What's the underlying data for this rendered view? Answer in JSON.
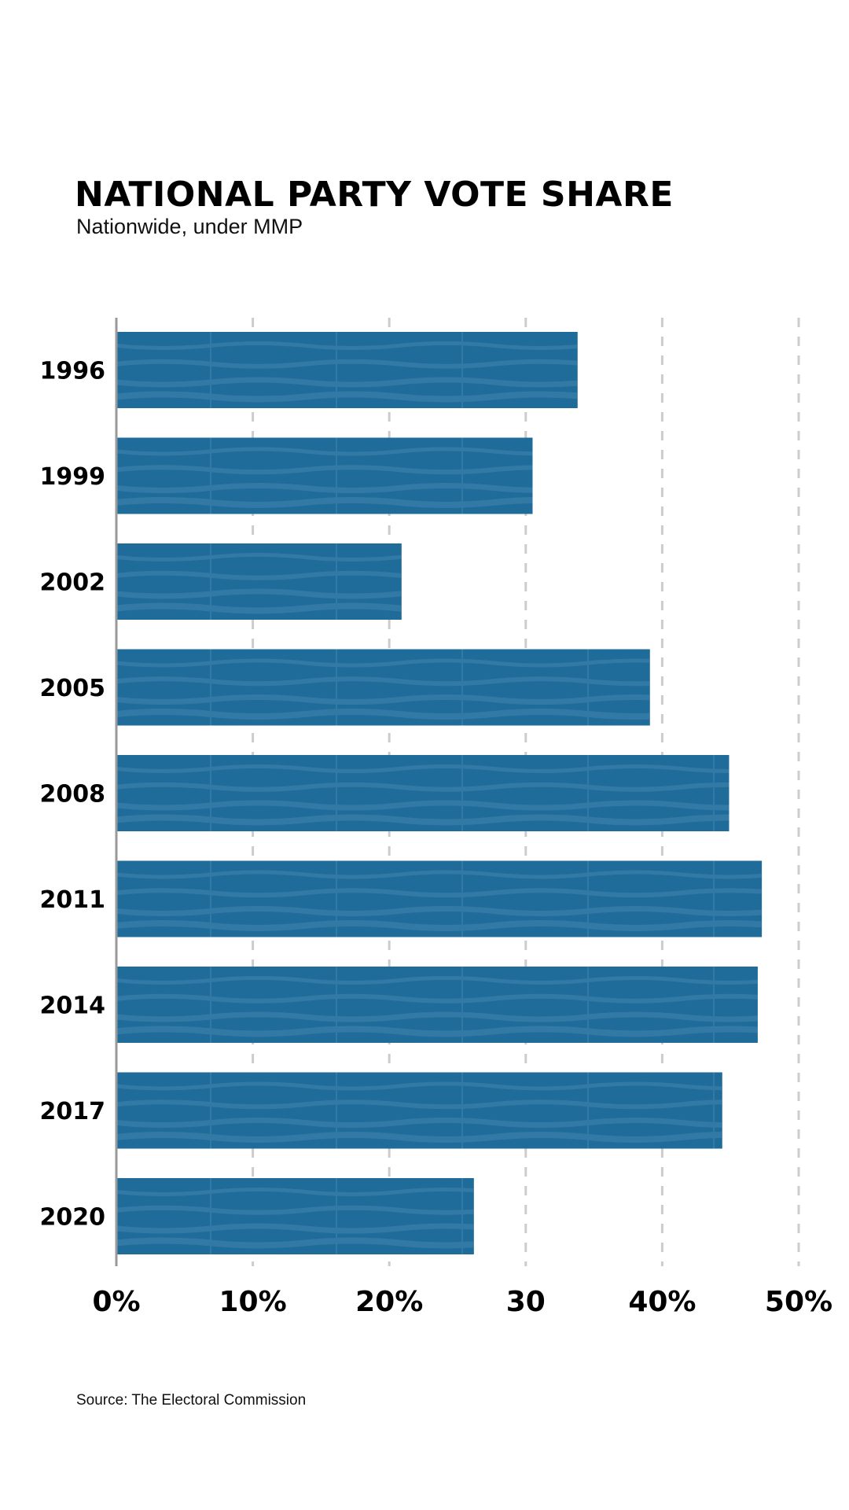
{
  "chart_data": {
    "type": "bar",
    "orientation": "horizontal",
    "title": "NATIONAL PARTY VOTE SHARE",
    "subtitle": "Nationwide, under MMP",
    "xlabel": "",
    "ylabel": "",
    "categories": [
      "1996",
      "1999",
      "2002",
      "2005",
      "2008",
      "2011",
      "2014",
      "2017",
      "2020"
    ],
    "values": [
      33.8,
      30.5,
      20.9,
      39.1,
      44.9,
      47.3,
      47.0,
      44.4,
      26.2
    ],
    "xlim": [
      0,
      50
    ],
    "xticks": [
      0,
      10,
      20,
      30,
      40,
      50
    ],
    "xtick_labels": [
      "0%",
      "10%",
      "20%",
      "30",
      "40%",
      "50%"
    ],
    "grid": "vertical dashed",
    "bar_color": "#1f6b99",
    "texture_color": "#4a8db5",
    "grid_color": "#cccccc",
    "axis_color": "#999999"
  },
  "source": "Source: The Electoral Commission"
}
